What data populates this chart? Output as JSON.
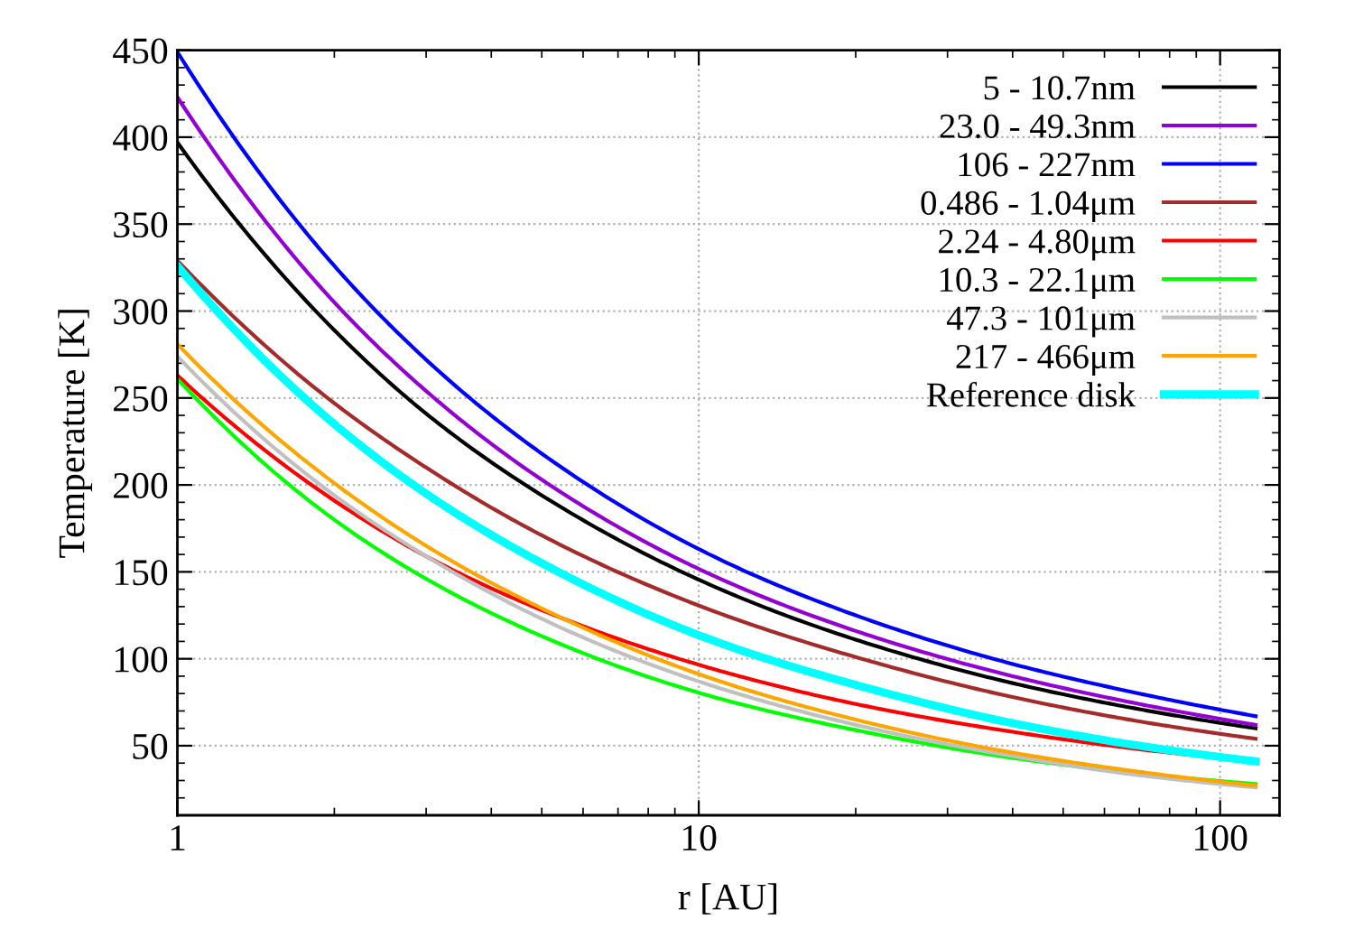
{
  "chart_data": {
    "type": "line",
    "xlabel": "r [AU]",
    "ylabel": "Temperature [K]",
    "x": [
      1,
      2,
      3,
      5,
      11,
      20,
      40,
      70,
      117
    ],
    "xlim": [
      1,
      130
    ],
    "xticks": [
      1,
      10,
      100
    ],
    "ylim": [
      10,
      450
    ],
    "yticks": [
      50,
      100,
      150,
      200,
      250,
      300,
      350,
      400,
      450
    ],
    "log": "x",
    "grid": true,
    "legend": "top right",
    "marker": "none",
    "line_style": "solid",
    "series": [
      {
        "name": "5 - 10.7nm",
        "color": "#000000",
        "values": [
          397,
          289,
          241,
          194,
          140,
          111,
          86,
          71,
          60
        ]
      },
      {
        "name": "23.0 - 49.3nm",
        "color": "#9400d3",
        "values": [
          423,
          305,
          254,
          203,
          146,
          116,
          90,
          74,
          62
        ]
      },
      {
        "name": "106 - 227nm",
        "color": "#0000ff",
        "values": [
          449,
          326,
          272,
          218,
          157,
          125,
          97,
          80,
          67
        ]
      },
      {
        "name": "0.486 - 1.04μm",
        "color": "#a52a2a",
        "values": [
          329,
          247,
          210,
          171,
          126,
          101,
          78,
          64,
          54
        ]
      },
      {
        "name": "2.24 - 4.80μm",
        "color": "#ff0000",
        "values": [
          263,
          191,
          159,
          128,
          93,
          74,
          58,
          48,
          41
        ]
      },
      {
        "name": "10.3 - 22.1μm",
        "color": "#00ff00",
        "values": [
          261,
          180,
          146,
          113,
          77,
          59,
          43,
          34,
          28
        ]
      },
      {
        "name": "47.3 - 101μm",
        "color": "#c0c0c0",
        "values": [
          274,
          194,
          159,
          123,
          83,
          62,
          44,
          33,
          26
        ]
      },
      {
        "name": "217 - 466μm",
        "color": "#ffa500",
        "values": [
          281,
          201,
          165,
          129,
          87,
          65,
          46,
          35,
          27
        ]
      },
      {
        "name": "Reference disk",
        "color": "#00ffff",
        "values": [
          326,
          235,
          195,
          155,
          109,
          85,
          63,
          50,
          41
        ]
      }
    ]
  }
}
